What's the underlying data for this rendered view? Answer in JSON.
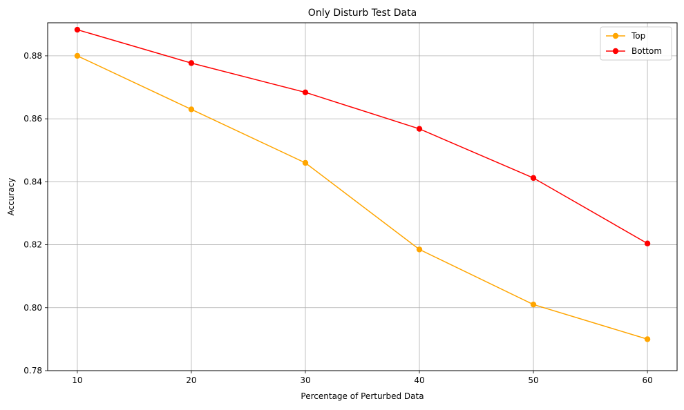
{
  "chart_data": {
    "type": "line",
    "title": "Only Disturb Test Data",
    "xlabel": "Percentage of Perturbed Data",
    "ylabel": "Accuracy",
    "x": [
      10,
      20,
      30,
      40,
      50,
      60
    ],
    "xticks": [
      "10",
      "20",
      "30",
      "40",
      "50",
      "60"
    ],
    "xlim": [
      7.4,
      62.6
    ],
    "yticks": [
      "0.78",
      "0.80",
      "0.82",
      "0.84",
      "0.86",
      "0.88"
    ],
    "ytick_values": [
      0.78,
      0.8,
      0.82,
      0.84,
      0.86,
      0.88
    ],
    "ylim": [
      0.78,
      0.8905
    ],
    "grid": true,
    "legend_position": "top-right",
    "series": [
      {
        "name": "Top",
        "color": "#FFA500",
        "marker": "circle",
        "values": [
          0.88,
          0.863,
          0.846,
          0.8185,
          0.801,
          0.79
        ]
      },
      {
        "name": "Bottom",
        "color": "#FF0000",
        "marker": "circle",
        "values": [
          0.8883,
          0.8777,
          0.8684,
          0.8568,
          0.8412,
          0.8204
        ]
      }
    ]
  }
}
